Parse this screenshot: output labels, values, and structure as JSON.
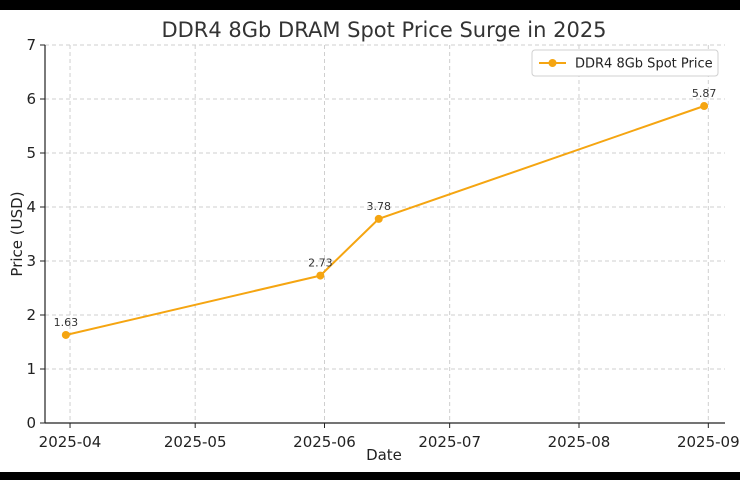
{
  "chart_data": {
    "type": "line",
    "title": "DDR4 8Gb DRAM Spot Price Surge in 2025",
    "xlabel": "Date",
    "ylabel": "Price (USD)",
    "ylim": [
      0,
      7
    ],
    "yticks": [
      0,
      1,
      2,
      3,
      4,
      5,
      6,
      7
    ],
    "xlim_days": [
      -6,
      157
    ],
    "xticks": [
      {
        "label": "2025-04",
        "day": 0
      },
      {
        "label": "2025-05",
        "day": 30
      },
      {
        "label": "2025-06",
        "day": 61
      },
      {
        "label": "2025-07",
        "day": 91
      },
      {
        "label": "2025-08",
        "day": 122
      },
      {
        "label": "2025-09",
        "day": 153
      }
    ],
    "grid": true,
    "legend_position": "top-right",
    "series": [
      {
        "name": "DDR4 8Gb Spot Price",
        "color": "#f5a511",
        "points": [
          {
            "day": -1,
            "value": 1.63,
            "label": "1.63"
          },
          {
            "day": 60,
            "value": 2.73,
            "label": "2.73"
          },
          {
            "day": 74,
            "value": 3.78,
            "label": "3.78"
          },
          {
            "day": 152,
            "value": 5.87,
            "label": "5.87"
          }
        ]
      }
    ]
  }
}
